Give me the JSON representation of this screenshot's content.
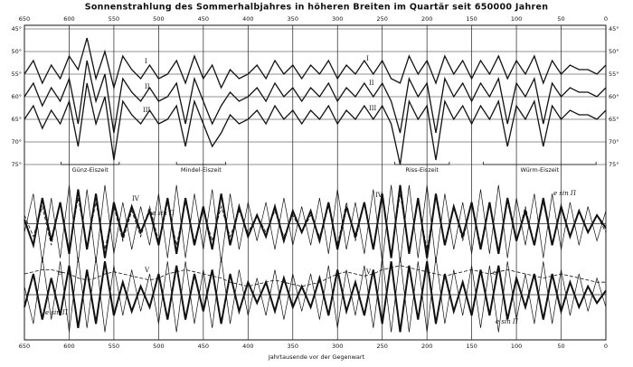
{
  "chart_data": {
    "type": "line",
    "title": "Sonnenstrahlung des Sommerhalbjahres in höheren Breiten im Quartär seit 650000 Jahren",
    "xlabel": "Jahrtausende vor der Gegenwart",
    "xlim": [
      650,
      0
    ],
    "xticks": [
      650,
      600,
      550,
      500,
      450,
      400,
      350,
      300,
      250,
      200,
      150,
      100,
      50,
      0
    ],
    "x": [
      650,
      640,
      630,
      620,
      610,
      600,
      590,
      580,
      570,
      560,
      550,
      540,
      530,
      520,
      510,
      500,
      490,
      480,
      470,
      460,
      450,
      440,
      430,
      420,
      410,
      400,
      390,
      380,
      370,
      360,
      350,
      340,
      330,
      320,
      310,
      300,
      290,
      280,
      270,
      260,
      250,
      240,
      230,
      220,
      210,
      200,
      190,
      180,
      170,
      160,
      150,
      140,
      130,
      120,
      110,
      100,
      90,
      80,
      70,
      60,
      50,
      40,
      30,
      20,
      10,
      0
    ],
    "grid": true,
    "color": "#111111",
    "panels": [
      {
        "type": "line",
        "ylim": [
          75,
          45
        ],
        "yticks": [
          {
            "value": 45,
            "label": "45°"
          },
          {
            "value": 50,
            "label": "50°"
          },
          {
            "value": 55,
            "label": "55°"
          },
          {
            "value": 60,
            "label": "60°"
          },
          {
            "value": 65,
            "label": "65°"
          },
          {
            "value": 70,
            "label": "70°"
          },
          {
            "value": 75,
            "label": "75°"
          }
        ],
        "series": [
          {
            "name": "I",
            "width": 1.3,
            "dash": false,
            "values": [
              55,
              52,
              57,
              53,
              56,
              51,
              54,
              47,
              56,
              50,
              58,
              51,
              54,
              56,
              53,
              56,
              55,
              52,
              57,
              51,
              56,
              53,
              58,
              54,
              56,
              55,
              53,
              56,
              52,
              55,
              53,
              56,
              53,
              55,
              52,
              56,
              53,
              55,
              52,
              55,
              52,
              56,
              57,
              51,
              55,
              52,
              57,
              51,
              55,
              52,
              56,
              52,
              55,
              51,
              56,
              52,
              55,
              51,
              57,
              52,
              55,
              53,
              54,
              54,
              55,
              53
            ]
          },
          {
            "name": "II",
            "width": 1.3,
            "dash": false,
            "values": [
              60,
              57,
              62,
              58,
              61,
              56,
              66,
              52,
              61,
              55,
              68,
              56,
              59,
              61,
              58,
              61,
              60,
              57,
              66,
              56,
              61,
              66,
              62,
              59,
              61,
              60,
              58,
              61,
              57,
              60,
              58,
              61,
              58,
              60,
              57,
              61,
              58,
              60,
              57,
              60,
              57,
              61,
              68,
              56,
              60,
              57,
              68,
              56,
              60,
              57,
              61,
              57,
              60,
              56,
              66,
              57,
              60,
              56,
              66,
              57,
              60,
              58,
              59,
              59,
              60,
              58
            ]
          },
          {
            "name": "III",
            "width": 1.3,
            "dash": false,
            "values": [
              65,
              62,
              67,
              63,
              66,
              61,
              71,
              57,
              66,
              60,
              74,
              61,
              64,
              66,
              63,
              66,
              65,
              62,
              71,
              61,
              66,
              71,
              68,
              64,
              66,
              65,
              63,
              66,
              62,
              65,
              63,
              66,
              63,
              65,
              62,
              66,
              63,
              65,
              62,
              65,
              62,
              66,
              75,
              61,
              65,
              62,
              74,
              61,
              65,
              62,
              66,
              62,
              65,
              61,
              71,
              62,
              65,
              61,
              71,
              62,
              65,
              63,
              64,
              64,
              65,
              63
            ]
          }
        ],
        "periods": [
          {
            "label": "Günz-Eiszeit",
            "start": 609,
            "end": 544
          },
          {
            "label": "Mindel-Eiszeit",
            "start": 480,
            "end": 425
          },
          {
            "label": "Riss-Eiszeit",
            "start": 236,
            "end": 175
          },
          {
            "label": "Würm-Eiszeit",
            "start": 137,
            "end": 11
          }
        ]
      },
      {
        "type": "line",
        "ylim": [
          -1,
          1
        ],
        "series": [
          {
            "name": "IV",
            "width": 2,
            "dash": false,
            "values": [
              0.1,
              -0.5,
              0.6,
              -0.4,
              0.5,
              -0.7,
              0.8,
              -0.6,
              0.7,
              -0.8,
              0.5,
              -0.3,
              0.4,
              -0.2,
              0.3,
              -0.5,
              0.6,
              -0.7,
              0.6,
              -0.5,
              0.4,
              -0.6,
              0.7,
              -0.5,
              0.4,
              -0.3,
              0.2,
              -0.3,
              0.4,
              -0.4,
              0.3,
              -0.2,
              0.3,
              -0.4,
              0.5,
              -0.6,
              0.4,
              -0.3,
              0.5,
              -0.6,
              0.7,
              -0.8,
              0.9,
              -0.7,
              0.6,
              -0.8,
              0.7,
              -0.5,
              0.4,
              -0.3,
              0.5,
              -0.6,
              0.5,
              -0.7,
              0.6,
              -0.4,
              0.3,
              -0.5,
              0.6,
              -0.5,
              0.4,
              -0.3,
              0.3,
              -0.2,
              0.2,
              -0.1
            ]
          },
          {
            "name": "e sin Π",
            "width": 0.8,
            "dash": true,
            "values": [
              0.2,
              -0.3,
              0.4,
              -0.5,
              0.5,
              -0.6,
              0.6,
              -0.5,
              0.5,
              -0.6,
              0.4,
              -0.4,
              0.3,
              -0.3,
              0.4,
              -0.4,
              0.5,
              -0.5,
              0.5,
              -0.4,
              0.3,
              -0.4,
              0.4,
              -0.3,
              0.3,
              -0.2,
              0.2,
              -0.2,
              0.3,
              -0.3,
              0.2,
              -0.2,
              0.2,
              -0.3,
              0.4,
              -0.5,
              0.5,
              -0.4,
              0.5,
              -0.6,
              0.6,
              -0.7,
              0.7,
              -0.6,
              0.5,
              -0.6,
              0.6,
              -0.5,
              0.4,
              -0.4,
              0.5,
              -0.5,
              0.5,
              -0.6,
              0.5,
              -0.4,
              0.4,
              -0.5,
              0.5,
              -0.5,
              0.4,
              -0.3,
              0.3,
              -0.2,
              0.2,
              -0.2
            ]
          },
          {
            "width": 0.7,
            "dash": false,
            "values": [
              -0.2,
              0.7,
              -0.9,
              0.6,
              -0.8,
              0.9,
              -0.9,
              0.8,
              -0.9,
              0.9,
              -0.7,
              0.5,
              -0.6,
              0.4,
              -0.5,
              0.7,
              -0.8,
              0.9,
              -0.8,
              0.7,
              -0.6,
              0.8,
              -0.9,
              0.7,
              -0.6,
              0.5,
              -0.4,
              0.5,
              -0.6,
              0.6,
              -0.5,
              0.4,
              -0.5,
              0.6,
              -0.7,
              0.8,
              -0.6,
              0.5,
              -0.7,
              0.8,
              -0.9,
              0.9,
              -0.9,
              0.9,
              -0.8,
              0.9,
              -0.9,
              0.7,
              -0.6,
              0.5,
              -0.7,
              0.8,
              -0.7,
              0.9,
              -0.8,
              0.6,
              -0.5,
              0.7,
              -0.8,
              0.7,
              -0.6,
              0.5,
              -0.5,
              0.4,
              -0.4,
              0.3
            ]
          }
        ]
      },
      {
        "type": "line",
        "ylim": [
          -1,
          1
        ],
        "series": [
          {
            "name": "V",
            "width": 2,
            "dash": false,
            "values": [
              -0.3,
              0.5,
              -0.6,
              0.4,
              -0.5,
              0.7,
              -0.8,
              0.6,
              -0.7,
              0.8,
              -0.5,
              0.3,
              -0.4,
              0.2,
              -0.3,
              0.5,
              -0.6,
              0.7,
              -0.6,
              0.5,
              -0.4,
              0.6,
              -0.7,
              0.5,
              -0.4,
              0.3,
              -0.2,
              0.3,
              -0.4,
              0.4,
              -0.3,
              0.2,
              -0.3,
              0.4,
              -0.5,
              0.6,
              -0.4,
              0.3,
              -0.5,
              0.6,
              -0.7,
              0.8,
              -0.9,
              0.7,
              -0.6,
              0.8,
              -0.7,
              0.5,
              -0.4,
              0.3,
              -0.5,
              0.6,
              -0.5,
              0.7,
              -0.6,
              0.4,
              -0.3,
              0.5,
              -0.6,
              0.5,
              -0.4,
              0.3,
              -0.3,
              0.2,
              -0.2,
              0.1
            ]
          },
          {
            "name": "e sin Π",
            "width": 0.7,
            "dash": false,
            "values": [
              0.2,
              -0.7,
              0.9,
              -0.6,
              0.8,
              -0.9,
              0.9,
              -0.8,
              0.9,
              -0.9,
              0.7,
              -0.5,
              0.6,
              -0.4,
              0.5,
              -0.7,
              0.8,
              -0.9,
              0.8,
              -0.7,
              0.6,
              -0.8,
              0.9,
              -0.7,
              0.6,
              -0.5,
              0.4,
              -0.5,
              0.6,
              -0.6,
              0.5,
              -0.4,
              0.5,
              -0.6,
              0.7,
              -0.8,
              0.6,
              -0.5,
              0.7,
              -0.8,
              0.9,
              -0.9,
              0.9,
              -0.9,
              0.8,
              -0.9,
              0.9,
              -0.7,
              0.6,
              -0.5,
              0.7,
              -0.8,
              0.7,
              -0.9,
              0.8,
              -0.6,
              0.5,
              -0.7,
              0.8,
              -0.7,
              0.6,
              -0.5,
              0.5,
              -0.4,
              0.4,
              -0.3
            ]
          },
          {
            "name": "e",
            "width": 0.8,
            "dash": true,
            "values": [
              0.5,
              0.55,
              0.6,
              0.6,
              0.55,
              0.5,
              0.4,
              0.35,
              0.4,
              0.5,
              0.55,
              0.5,
              0.45,
              0.4,
              0.35,
              0.4,
              0.5,
              0.55,
              0.6,
              0.55,
              0.5,
              0.45,
              0.4,
              0.3,
              0.25,
              0.2,
              0.25,
              0.3,
              0.35,
              0.3,
              0.25,
              0.2,
              0.25,
              0.3,
              0.4,
              0.5,
              0.55,
              0.5,
              0.45,
              0.5,
              0.6,
              0.65,
              0.7,
              0.65,
              0.6,
              0.55,
              0.5,
              0.45,
              0.5,
              0.55,
              0.6,
              0.55,
              0.5,
              0.55,
              0.6,
              0.55,
              0.5,
              0.45,
              0.4,
              0.45,
              0.5,
              0.45,
              0.4,
              0.35,
              0.3,
              0.3
            ]
          }
        ]
      }
    ]
  }
}
